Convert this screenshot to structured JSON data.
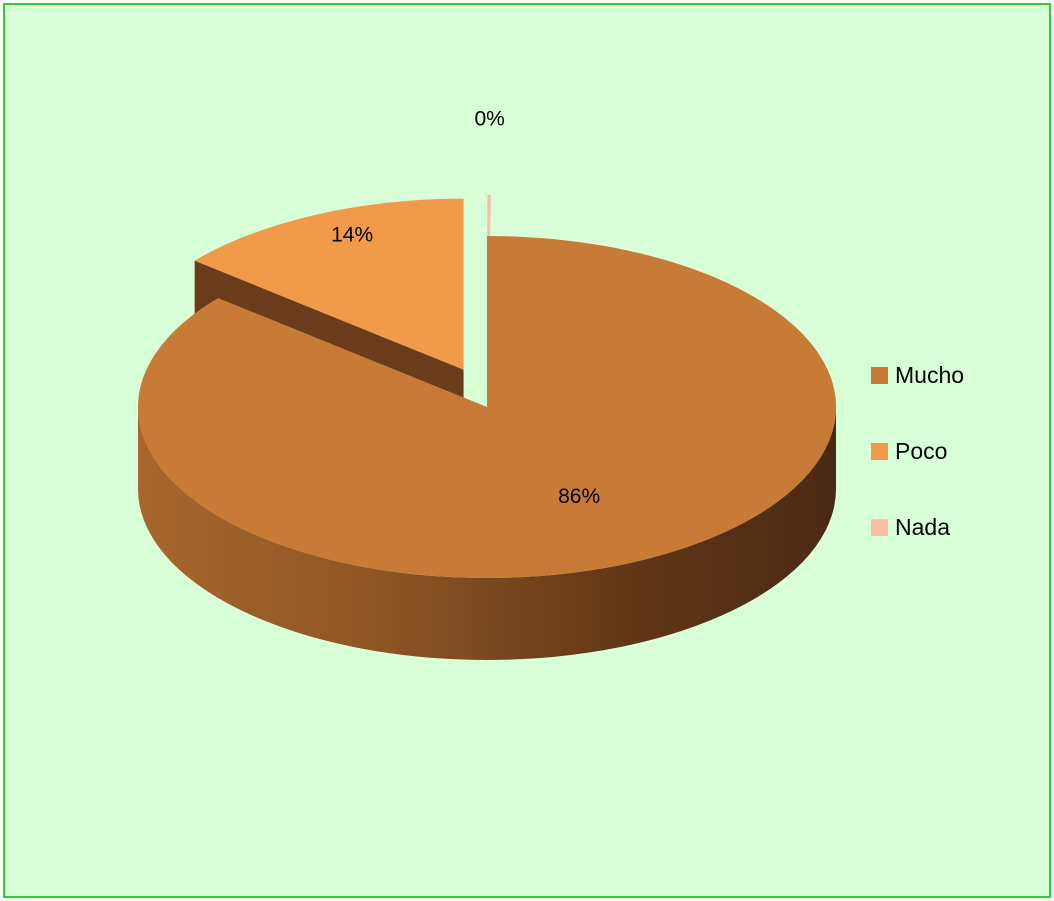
{
  "chart_data": {
    "type": "pie",
    "three_d": true,
    "exploded": true,
    "slices": [
      {
        "name": "Mucho",
        "value": 86,
        "label": "86%",
        "color": "#c87a37",
        "side_color": "#9a5a23"
      },
      {
        "name": "Poco",
        "value": 14,
        "label": "14%",
        "color": "#f09a4a",
        "side_color": "#6b3c1b"
      },
      {
        "name": "Nada",
        "value": 0,
        "label": "0%",
        "color": "#f7c0a6",
        "side_color": "#c38f78"
      }
    ],
    "legend": {
      "position": "right",
      "items": [
        "Mucho",
        "Poco",
        "Nada"
      ]
    },
    "colors": {
      "background": "#d8ffd8",
      "border": "#33cc33"
    }
  }
}
